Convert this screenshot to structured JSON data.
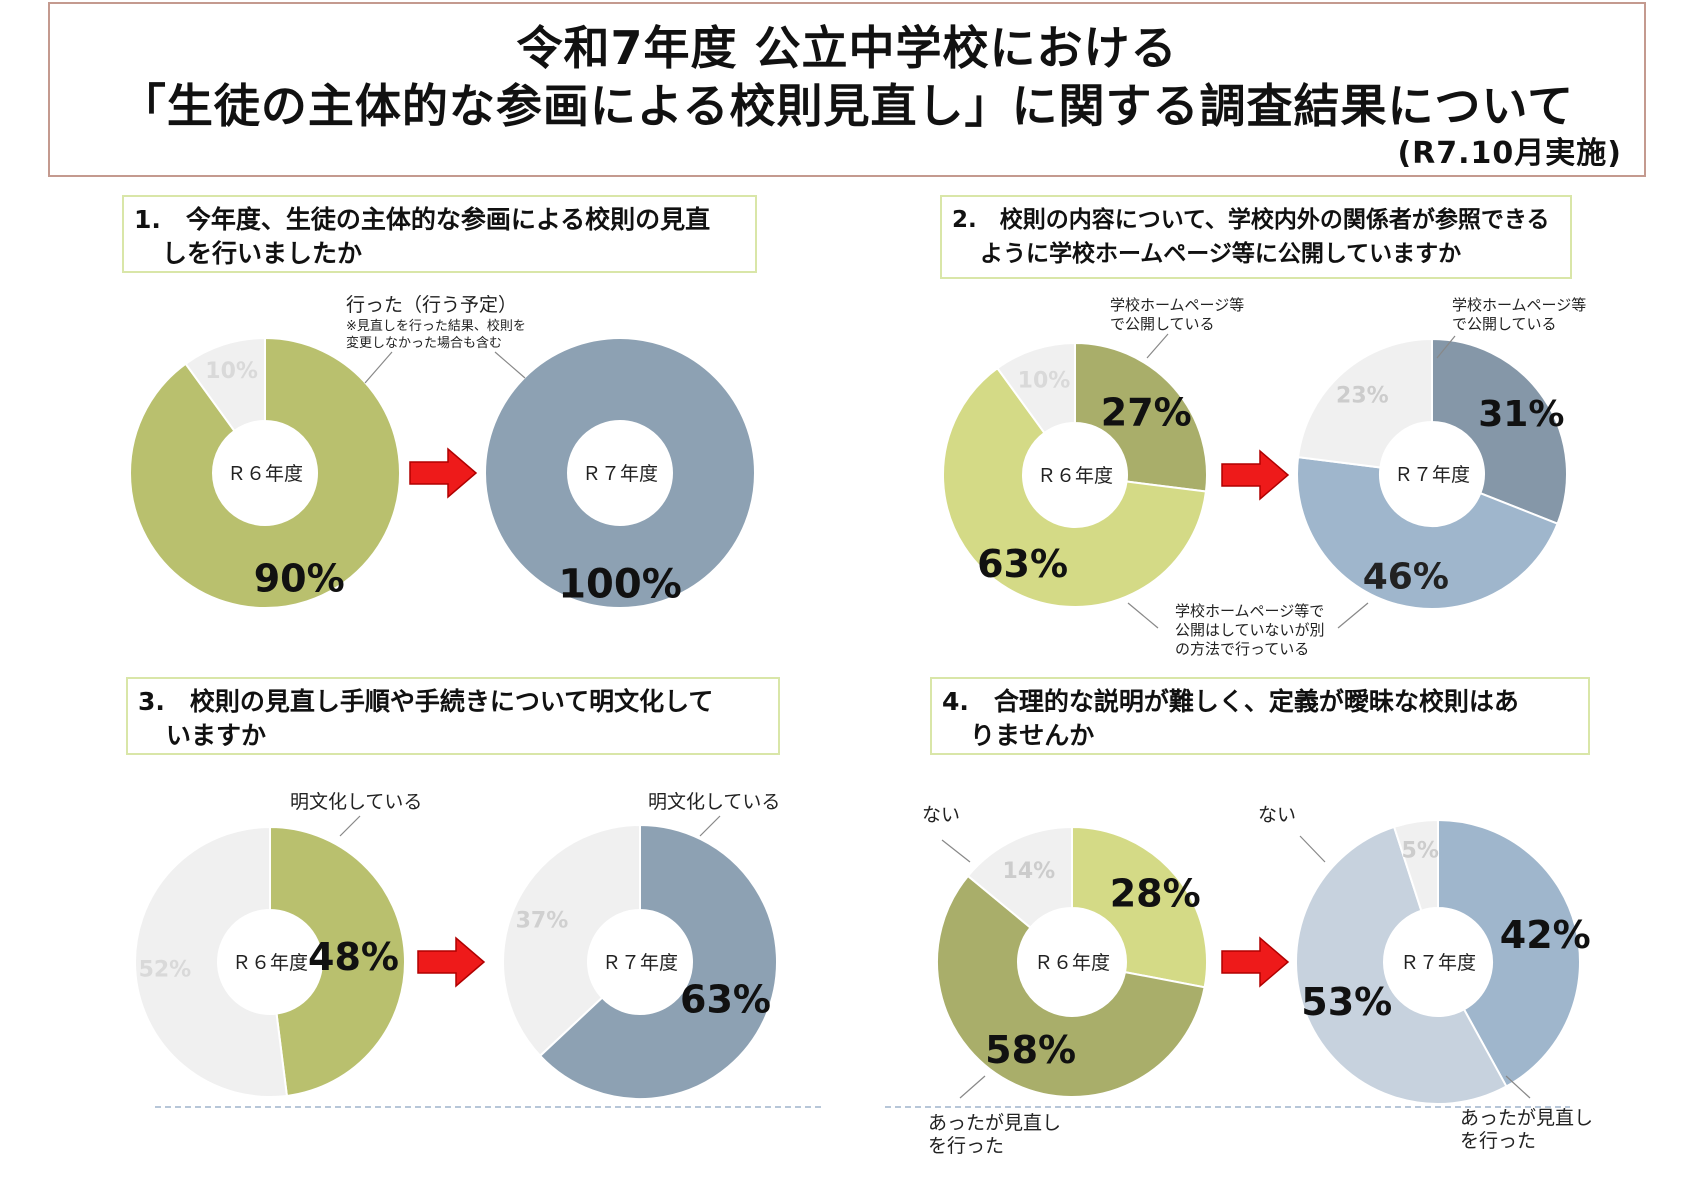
{
  "title": {
    "line1": "令和7年度 公立中学校における",
    "line2": "「生徒の主体的な参画による校則見直し」に関する調査結果について",
    "line3": "(R7.10月実施)"
  },
  "questions": [
    {
      "line1": "1.　今年度、生徒の主体的な参画による校則の見直",
      "line2": "しを行いましたか"
    },
    {
      "line1": "2.　校則の内容について、学校内外の関係者が参照できる",
      "line2": "ように学校ホームページ等に公開していますか"
    },
    {
      "line1": "3.　校則の見直し手順や手続きについて明文化して",
      "line2": "いますか"
    },
    {
      "line1": "4.　合理的な説明が難しく、定義が曖昧な校則はあ",
      "line2": "りませんか"
    }
  ],
  "colors": {
    "olive": "#b9c06e",
    "olive_light": "#d4da86",
    "olive_dark": "#a9ae6a",
    "steel": "#8da1b3",
    "steel_dark": "#8597a8",
    "steel_light": "#9fb6cc",
    "steel_pale": "#c7d2de",
    "gray_pale": "#f0f0f0",
    "arrow_red": "#ee1a1a"
  },
  "chart_data": [
    {
      "type": "pie",
      "question": 1,
      "caption": {
        "line1": "行った（行う予定）",
        "note1": "※見直しを行った結果、校則を",
        "note2": "変更しなかった場合も含む"
      },
      "donuts": [
        {
          "center": "Ｒ６年度",
          "slices": [
            {
              "value": 90,
              "label": "90%",
              "color": "olive"
            },
            {
              "value": 10,
              "label": "10%",
              "color": "gray_pale"
            }
          ]
        },
        {
          "center": "Ｒ７年度",
          "slices": [
            {
              "value": 100,
              "label": "100%",
              "color": "steel"
            }
          ]
        }
      ]
    },
    {
      "type": "pie",
      "question": 2,
      "caption": {
        "hp1": "学校ホームページ等",
        "hp2": "で公開している",
        "other1": "学校ホームページ等で",
        "other2": "公開はしていないが別",
        "other3": "の方法で行っている"
      },
      "donuts": [
        {
          "center": "Ｒ６年度",
          "slices": [
            {
              "value": 27,
              "label": "27%",
              "color": "olive_dark"
            },
            {
              "value": 63,
              "label": "63%",
              "color": "olive_light"
            },
            {
              "value": 10,
              "label": "10%",
              "color": "gray_pale"
            }
          ]
        },
        {
          "center": "Ｒ７年度",
          "slices": [
            {
              "value": 31,
              "label": "31%",
              "color": "steel_dark"
            },
            {
              "value": 46,
              "label": "46%",
              "color": "steel_light"
            },
            {
              "value": 23,
              "label": "23%",
              "color": "gray_pale"
            }
          ]
        }
      ]
    },
    {
      "type": "pie",
      "question": 3,
      "caption": {
        "line1": "明文化している"
      },
      "donuts": [
        {
          "center": "Ｒ６年度",
          "slices": [
            {
              "value": 48,
              "label": "48%",
              "color": "olive"
            },
            {
              "value": 52,
              "label": "52%",
              "color": "gray_pale"
            }
          ]
        },
        {
          "center": "Ｒ７年度",
          "slices": [
            {
              "value": 63,
              "label": "63%",
              "color": "steel"
            },
            {
              "value": 37,
              "label": "37%",
              "color": "gray_pale"
            }
          ]
        }
      ]
    },
    {
      "type": "pie",
      "question": 4,
      "caption": {
        "nai": "ない",
        "atta1": "あったが見直し",
        "atta2": "を行った"
      },
      "donuts": [
        {
          "center": "Ｒ６年度",
          "slices": [
            {
              "value": 28,
              "label": "28%",
              "color": "olive_light"
            },
            {
              "value": 58,
              "label": "58%",
              "color": "olive_dark"
            },
            {
              "value": 14,
              "label": "14%",
              "color": "gray_pale"
            }
          ]
        },
        {
          "center": "Ｒ７年度",
          "slices": [
            {
              "value": 42,
              "label": "42%",
              "color": "steel_light"
            },
            {
              "value": 53,
              "label": "53%",
              "color": "steel_pale"
            },
            {
              "value": 5,
              "label": "5%",
              "color": "gray_pale"
            }
          ]
        }
      ]
    }
  ]
}
